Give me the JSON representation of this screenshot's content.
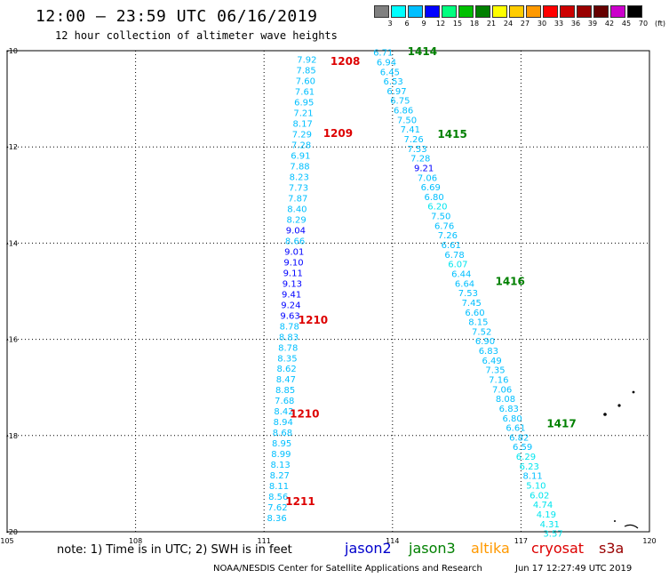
{
  "title": "12:00 – 23:59 UTC 06/16/2019",
  "subtitle": "12 hour collection of altimeter wave heights",
  "color_scale": {
    "labels": [
      "3",
      "6",
      "9",
      "12",
      "15",
      "18",
      "21",
      "24",
      "27",
      "30",
      "33",
      "36",
      "39",
      "42",
      "45",
      "70",
      "(ft)"
    ],
    "colors": [
      "#808080",
      "#00ffff",
      "#00bfff",
      "#0000ff",
      "#00ff7f",
      "#00c000",
      "#008000",
      "#ffff00",
      "#ffcc00",
      "#ff9900",
      "#ff0000",
      "#cc0000",
      "#990000",
      "#660000",
      "#cc00cc",
      "#000000"
    ]
  },
  "axes": {
    "lon_labels": [
      "105",
      "108",
      "111",
      "114",
      "117",
      "120"
    ],
    "lat_labels": [
      "-10",
      "-12",
      "-14",
      "-16",
      "-18",
      "-20"
    ]
  },
  "note": "note: 1) Time is in UTC; 2) SWH is in feet",
  "legend": [
    {
      "name": "jason2",
      "color": "#0000cc"
    },
    {
      "name": "jason3",
      "color": "#008000"
    },
    {
      "name": "altika",
      "color": "#ff9900"
    },
    {
      "name": "cryosat",
      "color": "#dd0000"
    },
    {
      "name": "s3a",
      "color": "#990000"
    }
  ],
  "footer_left": "NOAA/NESDIS Center for Satellite Applications and Research",
  "footer_right": "Jun 17 12:27:49 UTC 2019",
  "time_labels": [
    {
      "text": "1208",
      "color": "#dd0000",
      "lon": 112.55,
      "lat": -10.22
    },
    {
      "text": "1209",
      "color": "#dd0000",
      "lon": 112.38,
      "lat": -11.72
    },
    {
      "text": "1210",
      "color": "#dd0000",
      "lon": 111.8,
      "lat": -15.6
    },
    {
      "text": "1210",
      "color": "#dd0000",
      "lon": 111.6,
      "lat": -17.55
    },
    {
      "text": "1211",
      "color": "#dd0000",
      "lon": 111.5,
      "lat": -19.37
    },
    {
      "text": "1414",
      "color": "#008000",
      "lon": 114.35,
      "lat": -10.02
    },
    {
      "text": "1415",
      "color": "#008000",
      "lon": 115.05,
      "lat": -11.74
    },
    {
      "text": "1416",
      "color": "#008000",
      "lon": 116.4,
      "lat": -14.8
    },
    {
      "text": "1417",
      "color": "#008000",
      "lon": 117.6,
      "lat": -17.75
    }
  ],
  "track_west": {
    "values": [
      "7.92",
      "7.85",
      "7.60",
      "7.61",
      "6.95",
      "7.21",
      "8.17",
      "7.29",
      "7.28",
      "6.91",
      "7.88",
      "8.23",
      "7.73",
      "7.87",
      "8.40",
      "8.29",
      "9.04",
      "8.66",
      "9.01",
      "9.10",
      "9.11",
      "9.13",
      "9.41",
      "9.24",
      "9.63",
      "8.78",
      "8.83",
      "8.78",
      "8.35",
      "8.62",
      "8.47",
      "8.85",
      "7.68",
      "8.42",
      "8.94",
      "8.68",
      "8.95",
      "8.99",
      "8.13",
      "8.27",
      "8.11",
      "8.56",
      "7.62",
      "8.36"
    ],
    "lat_start": -10.18,
    "lat_step": 0.2215,
    "lon_start": 112.0,
    "lon_end": 111.3
  },
  "track_east": {
    "values": [
      "6.71",
      "6.94",
      "6.45",
      "6.53",
      "6.97",
      "6.75",
      "6.86",
      "7.50",
      "7.41",
      "7.26",
      "7.53",
      "7.28",
      "9.21",
      "7.06",
      "6.69",
      "6.80",
      "6.20",
      "7.50",
      "6.76",
      "7.26",
      "6.61",
      "6.78",
      "6.07",
      "6.44",
      "6.64",
      "7.53",
      "7.45",
      "6.60",
      "8.15",
      "7.52",
      "6.90",
      "6.83",
      "6.49",
      "7.35",
      "7.16",
      "7.06",
      "8.08",
      "6.83",
      "6.80",
      "6.61",
      "6.82",
      "6.59",
      "6.29",
      "6.23",
      "8.11",
      "5.10",
      "6.02",
      "4.74",
      "4.19",
      "4.31",
      "3.57"
    ],
    "lat_start": -10.03,
    "lat_step": 0.2,
    "lon_start": 113.78,
    "lon_end": 117.75
  },
  "track_color_default": "#00bfff",
  "track_color_high": "#0000ff",
  "track_color_low": "#00e5ee"
}
